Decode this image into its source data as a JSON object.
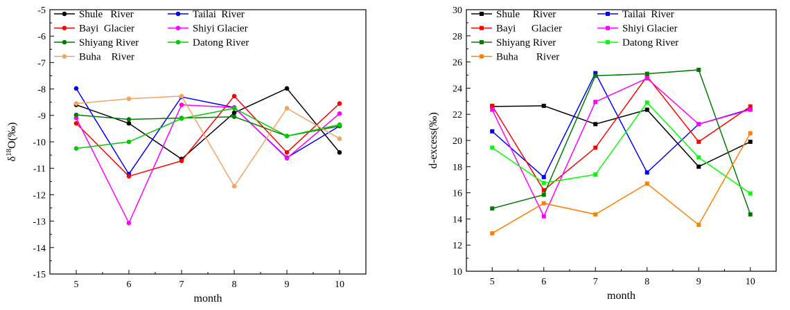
{
  "chart_data": [
    {
      "type": "line",
      "xlabel": "month",
      "ylabel": "δ18O(‰)",
      "ylabel_parts": {
        "prefix": "δ",
        "sup": "18",
        "suffix": "O(‰)"
      },
      "xlim": [
        4.5,
        10.5
      ],
      "ylim": [
        -15,
        -5
      ],
      "x": [
        5,
        6,
        7,
        8,
        9,
        10
      ],
      "x_ticks": [
        5,
        6,
        7,
        8,
        9,
        10
      ],
      "y_ticks": [
        -15,
        -14,
        -13,
        -12,
        -11,
        -10,
        -9,
        -8,
        -7,
        -6,
        -5
      ],
      "marker": "circle",
      "legend_position": "top-left",
      "series": [
        {
          "name": "Shule   River",
          "color": "#000000",
          "values": [
            -8.6,
            -9.3,
            -10.65,
            -8.9,
            -7.98,
            -10.4
          ]
        },
        {
          "name": "Tailai  River",
          "color": "#0000ff",
          "values": [
            -7.98,
            -11.22,
            -8.3,
            -8.7,
            -10.6,
            -9.4
          ]
        },
        {
          "name": "Bayi  Glacier",
          "color": "#ff0000",
          "values": [
            -9.3,
            -11.3,
            -10.72,
            -8.27,
            -10.4,
            -8.55
          ]
        },
        {
          "name": "Shiyi Glacier",
          "color": "#ff00ff",
          "values": [
            -9.1,
            -13.07,
            -8.6,
            -8.7,
            -10.62,
            -8.93
          ]
        },
        {
          "name": "Shiyang River",
          "color": "#007a00",
          "values": [
            -8.98,
            -9.15,
            -9.1,
            -9.05,
            -9.78,
            -9.4
          ]
        },
        {
          "name": "Datong River",
          "color": "#00cc00",
          "values": [
            -10.25,
            -10.0,
            -9.12,
            -8.73,
            -9.78,
            -9.35
          ]
        },
        {
          "name": "Buha    River",
          "color": "#f4a460",
          "values": [
            -8.55,
            -8.37,
            -8.27,
            -11.68,
            -8.73,
            -9.88
          ]
        }
      ]
    },
    {
      "type": "line",
      "xlabel": "month",
      "ylabel": "d-excess(‰)",
      "xlim": [
        4.5,
        10.5
      ],
      "ylim": [
        10,
        30
      ],
      "x": [
        5,
        6,
        7,
        8,
        9,
        10
      ],
      "x_ticks": [
        5,
        6,
        7,
        8,
        9,
        10
      ],
      "y_ticks": [
        10,
        12,
        14,
        16,
        18,
        20,
        22,
        24,
        26,
        28,
        30
      ],
      "marker": "square",
      "legend_position": "top-left",
      "series": [
        {
          "name": "Shule     River",
          "color": "#000000",
          "values": [
            22.6,
            22.65,
            21.25,
            22.35,
            18.0,
            19.9
          ]
        },
        {
          "name": "Tailai  River",
          "color": "#0000ff",
          "values": [
            20.7,
            17.2,
            25.15,
            17.55,
            21.25,
            22.4
          ]
        },
        {
          "name": "Bayi      Glacier",
          "color": "#ff0000",
          "values": [
            22.65,
            16.2,
            19.45,
            24.9,
            19.9,
            22.6
          ]
        },
        {
          "name": "Shiyi Glacier",
          "color": "#ff00ff",
          "values": [
            22.35,
            14.2,
            22.95,
            24.75,
            21.25,
            22.35
          ]
        },
        {
          "name": "Shiyang River",
          "color": "#007a00",
          "values": [
            14.8,
            15.85,
            24.95,
            25.1,
            25.4,
            14.35
          ]
        },
        {
          "name": "Datong River",
          "color": "#00ff00",
          "values": [
            19.45,
            16.75,
            17.4,
            22.9,
            18.7,
            15.95
          ]
        },
        {
          "name": "Buha       River",
          "color": "#ff7f00",
          "values": [
            12.9,
            15.2,
            14.35,
            16.7,
            13.55,
            20.55
          ]
        }
      ]
    }
  ]
}
